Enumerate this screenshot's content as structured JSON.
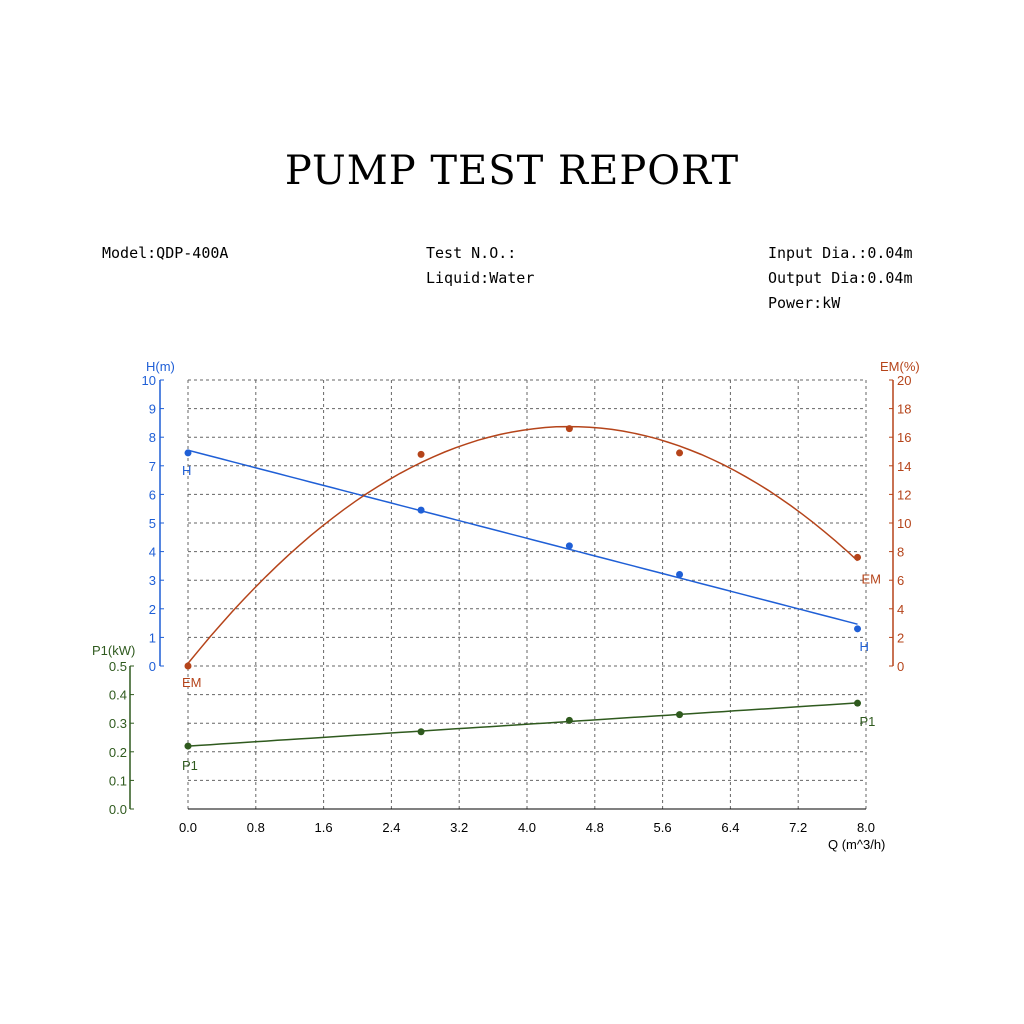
{
  "report": {
    "title": "PUMP TEST REPORT",
    "model": "Model:QDP-400A",
    "test_no": "Test N.O.:",
    "liquid": "Liquid:Water",
    "input_dia": "Input Dia.:0.04m",
    "output_dia": "Output Dia:0.04m",
    "power": "Power:kW"
  },
  "colors": {
    "H": "#1f5fd6",
    "EM": "#b5441a",
    "P1": "#2f5a1e",
    "grid": "#666666"
  },
  "chart_data": {
    "type": "line",
    "grid": true,
    "x": {
      "label": "Q (m^3/h)",
      "range": [
        0,
        8.0
      ],
      "ticks": [
        "0.0",
        "0.8",
        "1.6",
        "2.4",
        "3.2",
        "4.0",
        "4.8",
        "5.6",
        "6.4",
        "7.2",
        "8.0"
      ]
    },
    "axes": {
      "H": {
        "label": "H(m)",
        "range": [
          0,
          10
        ],
        "ticks": [
          "0",
          "1",
          "2",
          "3",
          "4",
          "5",
          "6",
          "7",
          "8",
          "9",
          "10"
        ],
        "side": "left"
      },
      "EM": {
        "label": "EM(%)",
        "range": [
          0,
          20
        ],
        "ticks": [
          "0",
          "2",
          "4",
          "6",
          "8",
          "10",
          "12",
          "14",
          "16",
          "18",
          "20"
        ],
        "side": "right"
      },
      "P1": {
        "label": "P1(kW)",
        "range": [
          0,
          0.5
        ],
        "ticks": [
          "0.0",
          "0.1",
          "0.2",
          "0.3",
          "0.4",
          "0.5"
        ],
        "side": "left-lower"
      }
    },
    "series": [
      {
        "name": "H",
        "axis": "H",
        "fit": "linear",
        "x": [
          0.0,
          2.75,
          4.5,
          5.8,
          7.9
        ],
        "y": [
          7.45,
          5.45,
          4.2,
          3.2,
          1.3
        ]
      },
      {
        "name": "EM",
        "axis": "EM",
        "fit": "quadratic",
        "x": [
          0.0,
          2.75,
          4.5,
          5.8,
          7.9
        ],
        "y": [
          0.0,
          14.8,
          16.6,
          14.9,
          7.6
        ]
      },
      {
        "name": "P1",
        "axis": "P1",
        "fit": "linear",
        "x": [
          0.0,
          2.75,
          4.5,
          5.8,
          7.9
        ],
        "y": [
          0.22,
          0.27,
          0.31,
          0.33,
          0.37
        ]
      }
    ]
  }
}
